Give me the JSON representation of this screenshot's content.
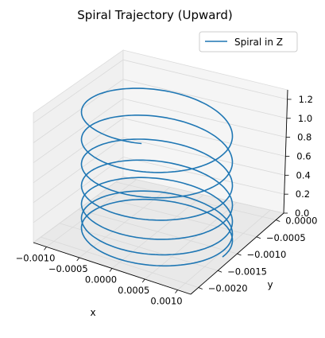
{
  "chart_data": {
    "type": "line",
    "projection": "3d",
    "title": "Spiral Trajectory (Upward)",
    "xlabel": "x",
    "ylabel": "y",
    "zlabel": "",
    "x_ticks": [
      "−0.0010",
      "−0.0005",
      "0.0000",
      "0.0005",
      "0.0010"
    ],
    "y_ticks": [
      "0.0000",
      "−0.0005",
      "−0.0010",
      "−0.0015",
      "−0.0020"
    ],
    "z_ticks": [
      "0.0",
      "0.2",
      "0.4",
      "0.6",
      "0.8",
      "1.0",
      "1.2"
    ],
    "xlim": [
      -0.0012,
      0.0012
    ],
    "ylim": [
      -0.0022,
      0.0002
    ],
    "zlim": [
      0,
      1.3
    ],
    "grid": true,
    "legend_position": "top-right",
    "series": [
      {
        "name": "Spiral in Z",
        "color": "#1f77b4",
        "turns": 6.8,
        "z_start": 0.0,
        "z_end": 1.25,
        "radius_start": 0.001,
        "radius_end": 0.001,
        "center": [
          0.0,
          -0.001
        ]
      }
    ]
  }
}
